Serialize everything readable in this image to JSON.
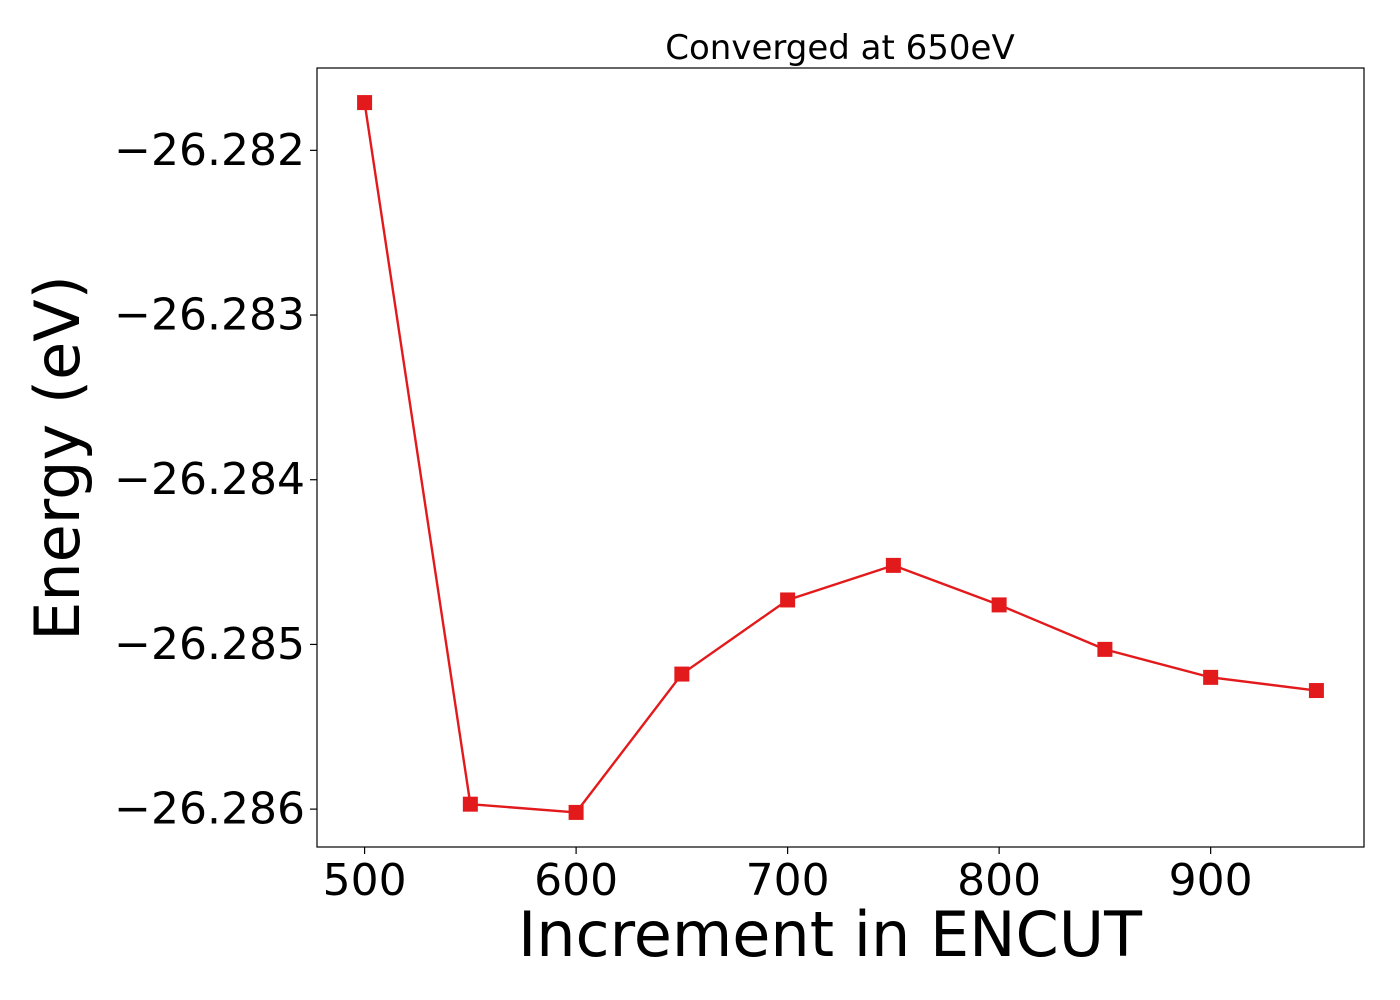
{
  "chart_data": {
    "type": "line",
    "title": "Converged at 650eV",
    "xlabel": "Increment in ENCUT",
    "ylabel": "Energy (eV)",
    "x": [
      500,
      550,
      600,
      650,
      700,
      750,
      800,
      850,
      900,
      950
    ],
    "series": [
      {
        "values": [
          -26.28171,
          -26.28597,
          -26.28602,
          -26.28518,
          -26.28473,
          -26.28452,
          -26.28476,
          -26.28503,
          -26.2852,
          -26.28528
        ],
        "color": "#e31a1c",
        "marker": "square"
      }
    ],
    "xlim": [
      477.5,
      972.5
    ],
    "ylim": [
      -26.28623,
      -26.2815
    ],
    "xticks": [
      500,
      600,
      700,
      800,
      900
    ],
    "xtick_labels": [
      "500",
      "600",
      "700",
      "800",
      "900"
    ],
    "yticks": [
      -26.282,
      -26.283,
      -26.284,
      -26.285,
      -26.286
    ],
    "ytick_labels": [
      "−26.282",
      "−26.283",
      "−26.284",
      "−26.285",
      "−26.286"
    ],
    "grid": false,
    "legend": false
  }
}
